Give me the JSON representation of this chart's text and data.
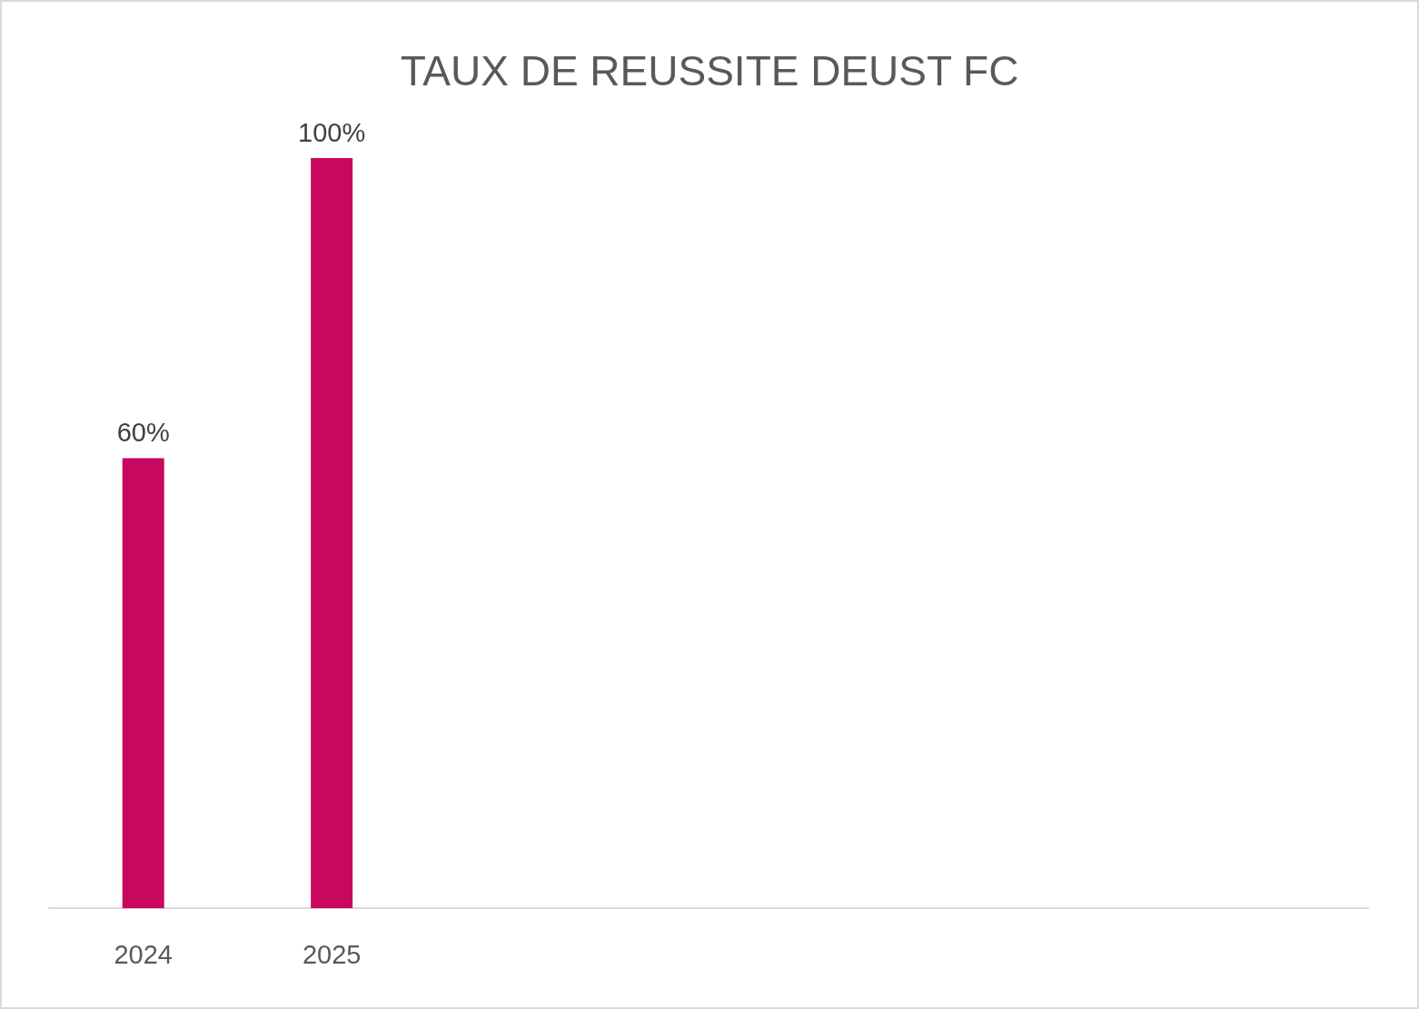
{
  "chart_data": {
    "type": "bar",
    "title": "TAUX DE REUSSITE DEUST FC",
    "categories": [
      "2024",
      "2025",
      null,
      null,
      null,
      null,
      null
    ],
    "values": [
      60,
      100,
      null,
      null,
      null,
      null,
      null
    ],
    "value_labels": [
      "60%",
      "100%",
      null,
      null,
      null,
      null,
      null
    ],
    "color": "#c8085f"
  }
}
